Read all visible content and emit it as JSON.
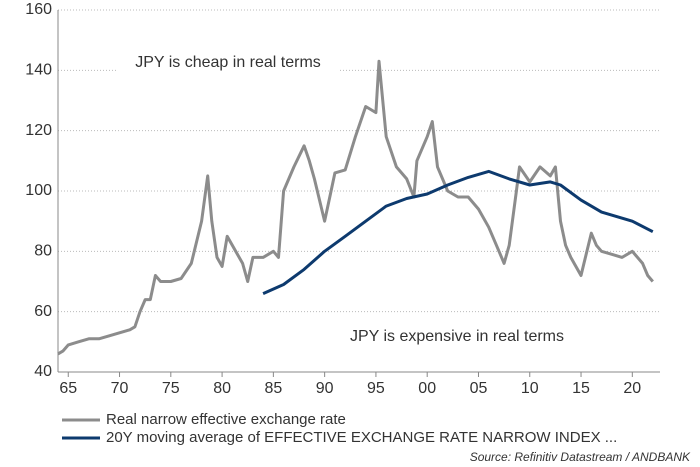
{
  "chart_data": {
    "type": "line",
    "annotations": [
      "JPY is cheap in real terms",
      "JPY is expensive in real terms"
    ],
    "source": "Source: Refinitiv Datastream / ANDBANK",
    "xlim": [
      1964,
      2022.7
    ],
    "xticks": [
      {
        "value": 1965,
        "label": "65"
      },
      {
        "value": 1970,
        "label": "70"
      },
      {
        "value": 1975,
        "label": "75"
      },
      {
        "value": 1980,
        "label": "80"
      },
      {
        "value": 1985,
        "label": "85"
      },
      {
        "value": 1990,
        "label": "90"
      },
      {
        "value": 1995,
        "label": "95"
      },
      {
        "value": 2000,
        "label": "00"
      },
      {
        "value": 2005,
        "label": "05"
      },
      {
        "value": 2010,
        "label": "10"
      },
      {
        "value": 2015,
        "label": "15"
      },
      {
        "value": 2020,
        "label": "20"
      }
    ],
    "ylim": [
      40,
      160
    ],
    "yticks": [
      40,
      60,
      80,
      100,
      120,
      140,
      160
    ],
    "grid": true,
    "series": [
      {
        "name": "Real narrow effective exchange rate",
        "color": "#8c8c8c",
        "x": [
          1964,
          1964.5,
          1965,
          1966,
          1967,
          1968,
          1969,
          1970,
          1971,
          1971.5,
          1972,
          1972.5,
          1973,
          1973.5,
          1974,
          1975,
          1976,
          1977,
          1978,
          1978.6,
          1979,
          1979.5,
          1980,
          1980.5,
          1981,
          1982,
          1982.5,
          1983,
          1984,
          1985,
          1985.5,
          1986,
          1987,
          1988,
          1988.5,
          1989,
          1990,
          1990.5,
          1991,
          1992,
          1993,
          1994,
          1995,
          1995.3,
          1996,
          1997,
          1998,
          1998.7,
          1999,
          2000,
          2000.5,
          2001,
          2002,
          2003,
          2004,
          2005,
          2006,
          2007,
          2007.5,
          2008,
          2008.7,
          2009,
          2010,
          2011,
          2012,
          2012.5,
          2013,
          2013.5,
          2014,
          2015,
          2016,
          2016.5,
          2017,
          2018,
          2019,
          2020,
          2021,
          2021.5,
          2022
        ],
        "values": [
          46,
          47,
          49,
          50,
          51,
          51,
          52,
          53,
          54,
          55,
          60,
          64,
          64,
          72,
          70,
          70,
          71,
          76,
          90,
          105,
          90,
          78,
          75,
          85,
          82,
          76,
          70,
          78,
          78,
          80,
          78,
          100,
          108,
          115,
          110,
          104,
          90,
          98,
          106,
          107,
          118,
          128,
          126,
          143,
          118,
          108,
          104,
          98,
          110,
          118,
          123,
          108,
          100,
          98,
          98,
          94,
          88,
          80,
          76,
          82,
          100,
          108,
          103,
          108,
          105,
          108,
          90,
          82,
          78,
          72,
          86,
          82,
          80,
          79,
          78,
          80,
          76,
          72,
          70
        ]
      },
      {
        "name": "20Y moving average of EFFECTIVE EXCHANGE RATE NARROW INDEX ...",
        "color": "#0d3a6e",
        "x": [
          1984,
          1986,
          1988,
          1990,
          1992,
          1994,
          1996,
          1998,
          2000,
          2002,
          2004,
          2006,
          2008,
          2010,
          2012,
          2013,
          2015,
          2017,
          2020,
          2022
        ],
        "values": [
          66,
          69,
          74,
          80,
          85,
          90,
          95,
          97.5,
          99,
          102,
          104.5,
          106.5,
          104,
          102,
          103,
          102,
          97,
          93,
          90,
          86.5
        ]
      }
    ]
  }
}
